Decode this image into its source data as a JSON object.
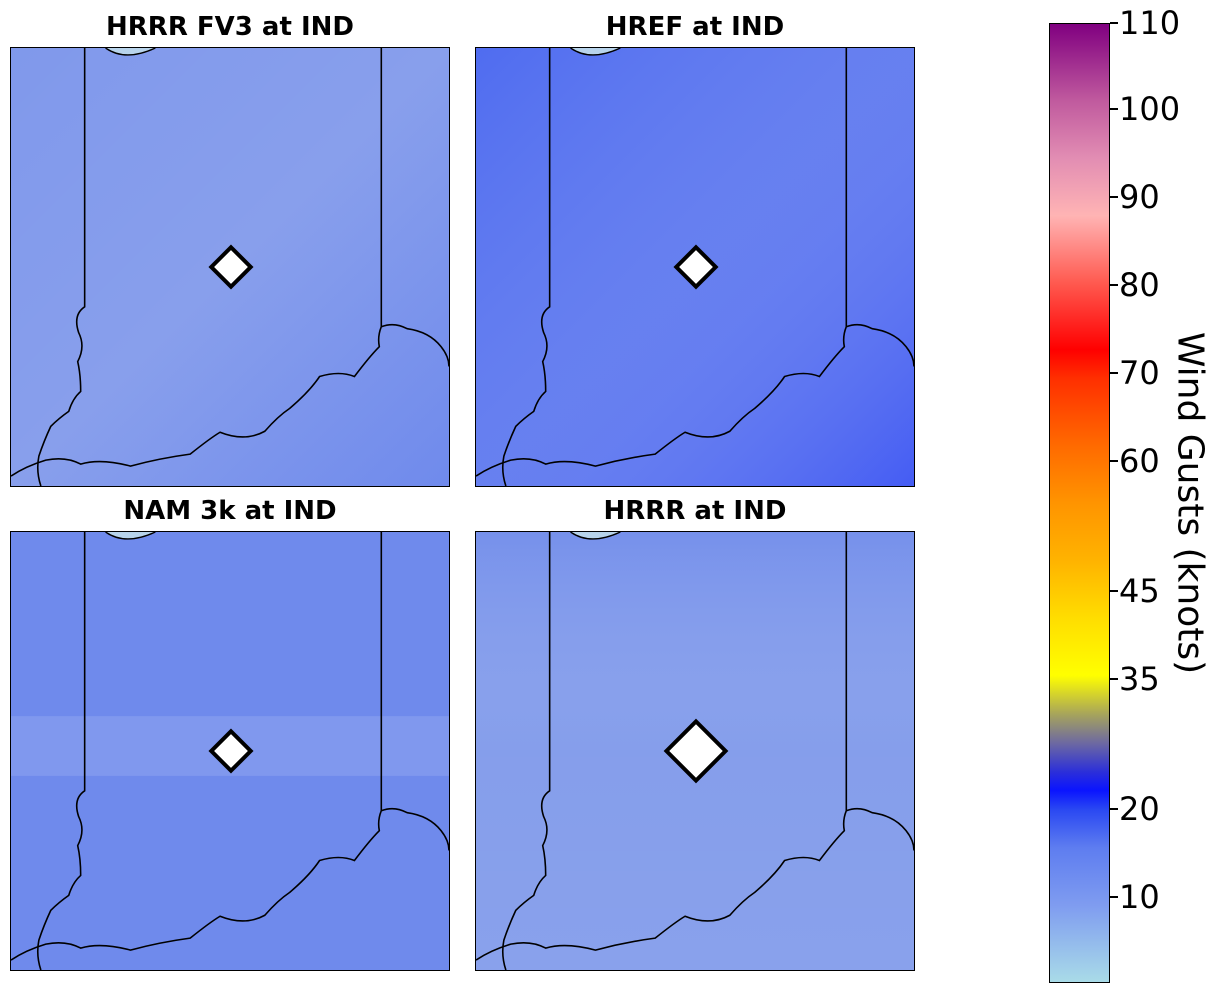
{
  "panels": [
    {
      "title": "HRRR FV3 at IND",
      "fill": "#7892ea"
    },
    {
      "title": "HREF at IND",
      "fill": "#5571ee"
    },
    {
      "title": "NAM 3k at IND",
      "fill": "#6f8aec"
    },
    {
      "title": "HRRR at IND",
      "fill": "#7f99ea"
    }
  ],
  "colorbar": {
    "label": "Wind Gusts (knots)",
    "ticks": [
      "110",
      "100",
      "90",
      "80",
      "70",
      "60",
      "45",
      "35",
      "20",
      "10"
    ],
    "tick_values": [
      110,
      100,
      90,
      80,
      70,
      60,
      45,
      35,
      20,
      10
    ]
  },
  "colors": {
    "border_line": "#000000",
    "station_marker_fill": "#ffffff"
  }
}
